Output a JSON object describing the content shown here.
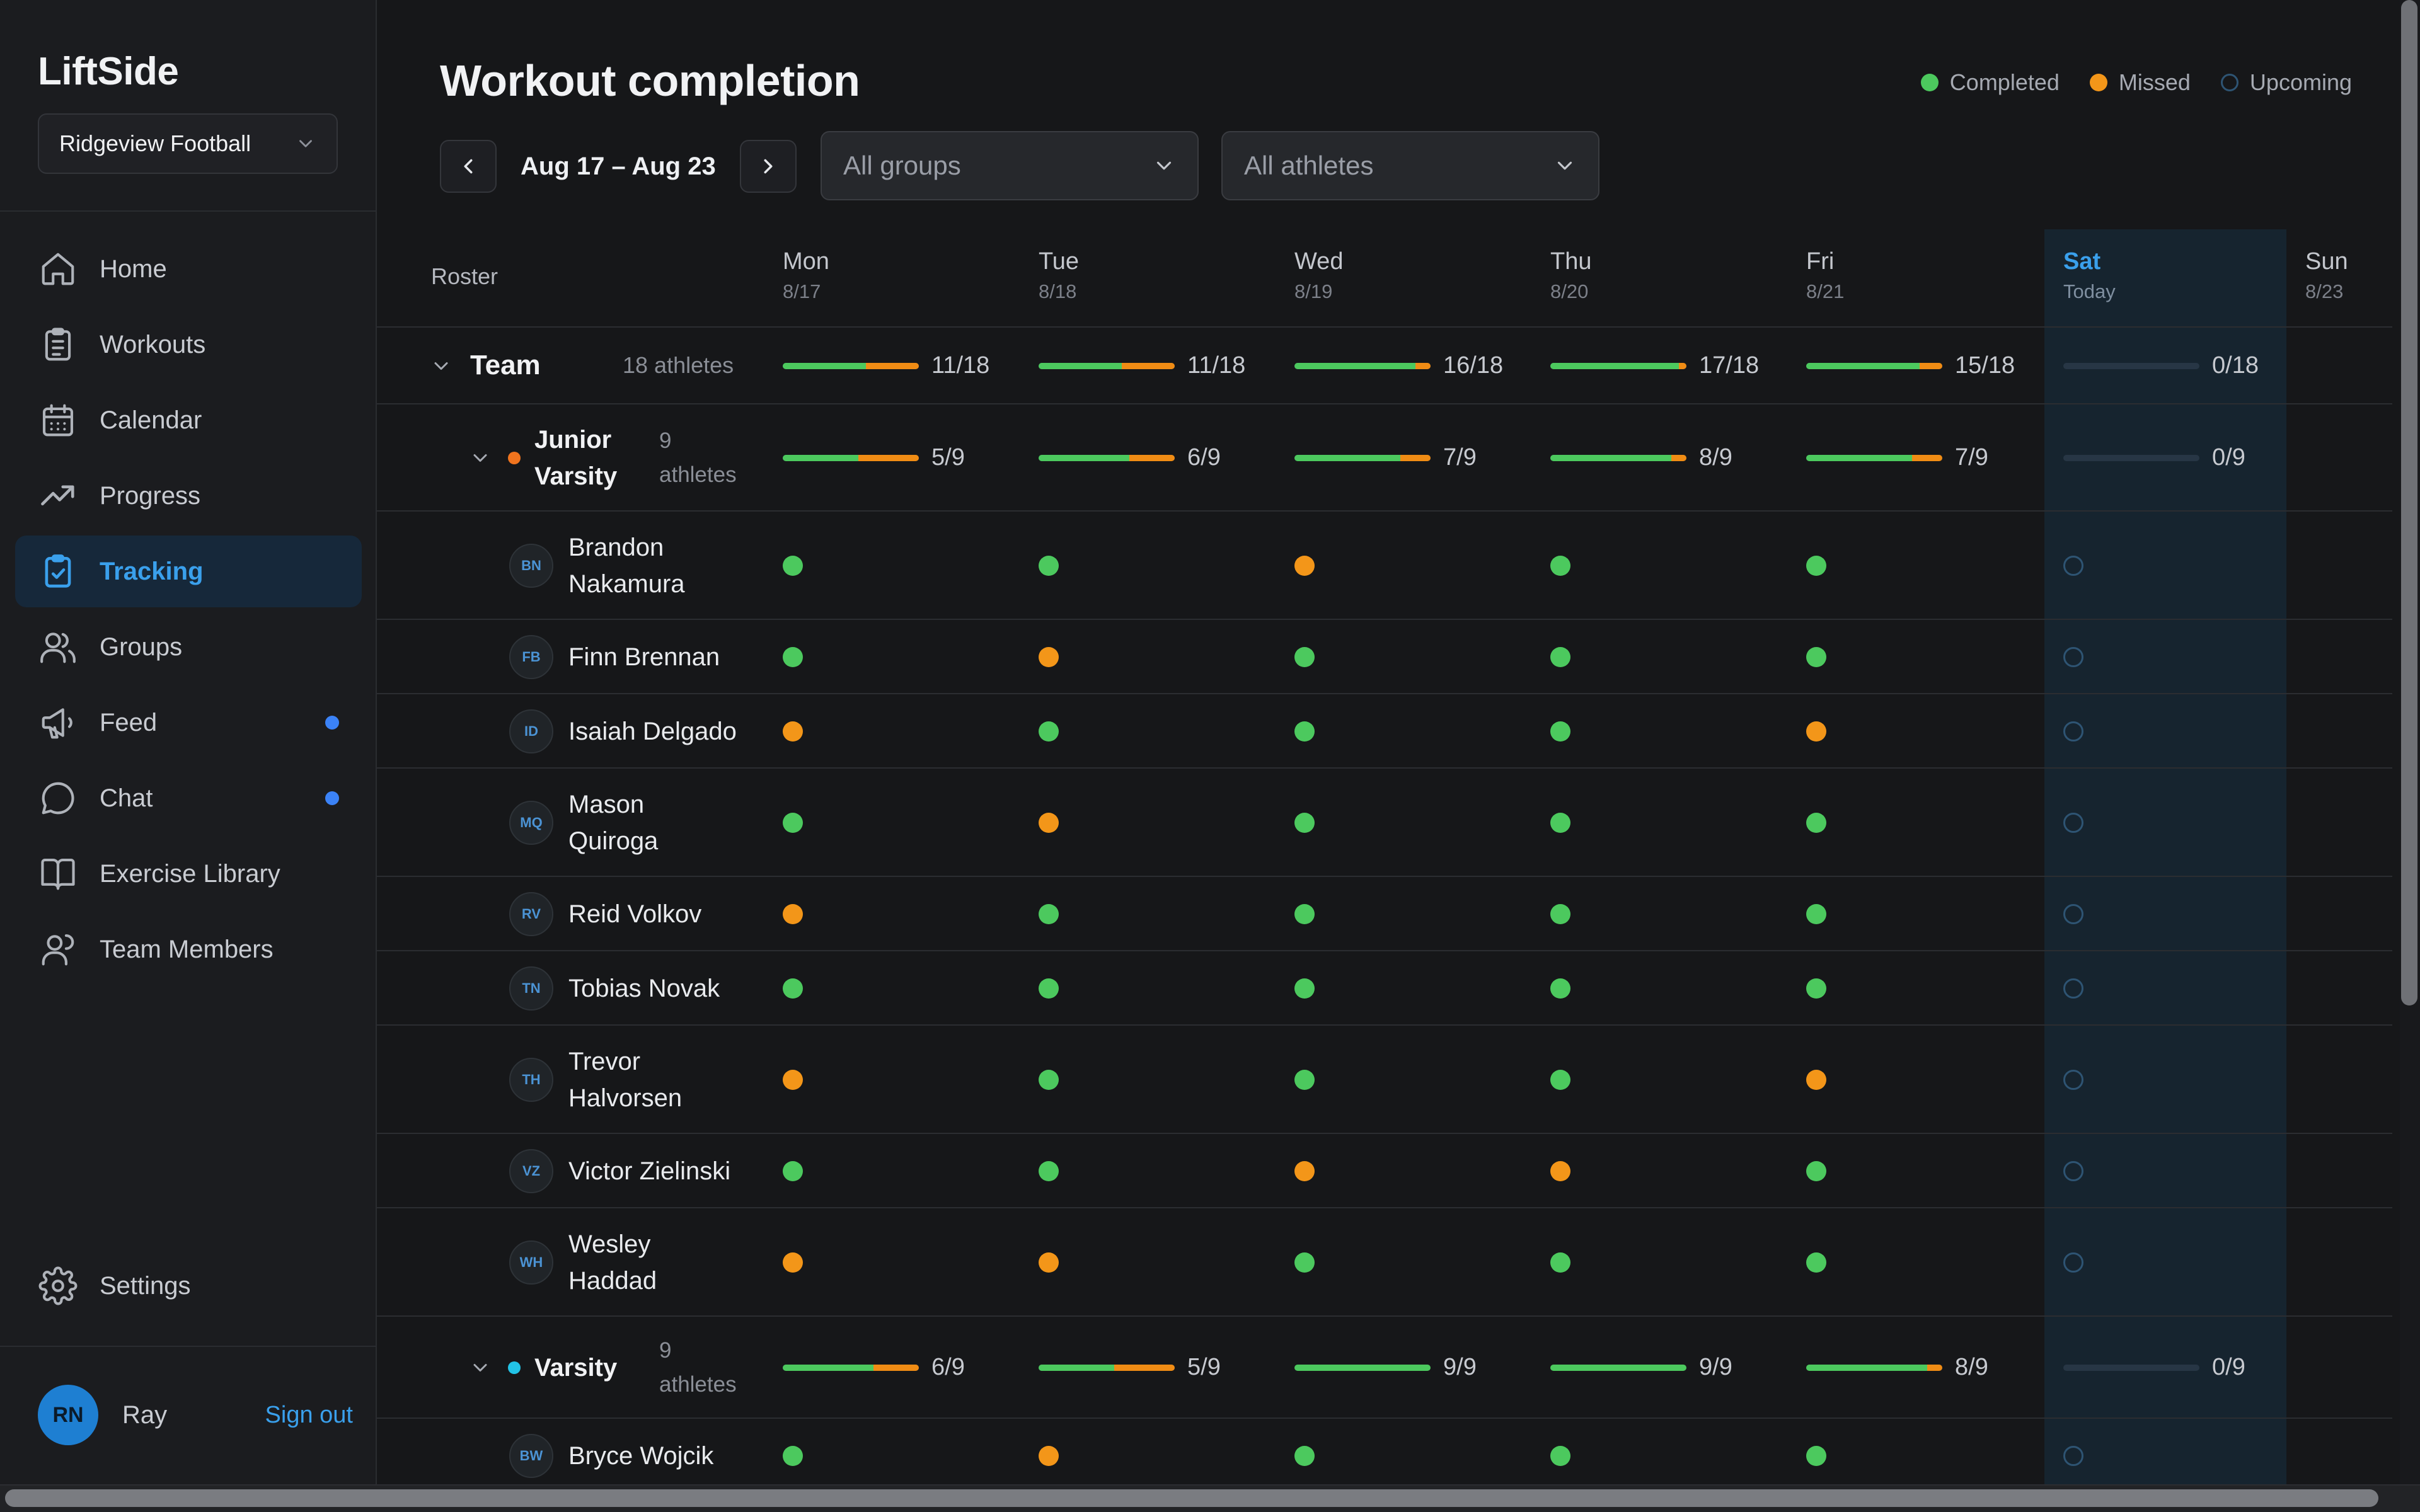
{
  "app": {
    "name": "LiftSide",
    "team_selector": "Ridgeview Football"
  },
  "sidebar": {
    "items": [
      {
        "label": "Home",
        "icon": "home-icon"
      },
      {
        "label": "Workouts",
        "icon": "clipboard-list-icon"
      },
      {
        "label": "Calendar",
        "icon": "calendar-icon"
      },
      {
        "label": "Progress",
        "icon": "trending-up-icon"
      },
      {
        "label": "Tracking",
        "icon": "clipboard-check-icon",
        "active": true
      },
      {
        "label": "Groups",
        "icon": "users-icon"
      },
      {
        "label": "Feed",
        "icon": "megaphone-icon",
        "badge": true
      },
      {
        "label": "Chat",
        "icon": "chat-bubble-icon",
        "badge": true
      },
      {
        "label": "Exercise Library",
        "icon": "book-icon"
      },
      {
        "label": "Team Members",
        "icon": "team-members-icon"
      }
    ],
    "settings_label": "Settings",
    "user": {
      "initials": "RN",
      "name": "Ray",
      "sign_out": "Sign out"
    }
  },
  "page": {
    "title": "Workout completion",
    "legend": [
      {
        "label": "Completed",
        "color": "#4cc95e"
      },
      {
        "label": "Missed",
        "color": "#f39619"
      },
      {
        "label": "Upcoming",
        "color": "#2e5473"
      }
    ],
    "week_range": "Aug 17 – Aug 23",
    "filters": {
      "groups": "All groups",
      "athletes": "All athletes"
    }
  },
  "grid": {
    "roster_label": "Roster",
    "days": [
      {
        "name": "Mon",
        "date": "8/17"
      },
      {
        "name": "Tue",
        "date": "8/18"
      },
      {
        "name": "Wed",
        "date": "8/19"
      },
      {
        "name": "Thu",
        "date": "8/20"
      },
      {
        "name": "Fri",
        "date": "8/21"
      },
      {
        "name": "Sat",
        "date": "Today",
        "today": true
      },
      {
        "name": "Sun",
        "date": "8/23"
      }
    ],
    "team": {
      "name": "Team",
      "count": "18 athletes",
      "stats": [
        {
          "label": "11/18",
          "completed": 11,
          "missed": 7,
          "total": 18
        },
        {
          "label": "11/18",
          "completed": 11,
          "missed": 7,
          "total": 18
        },
        {
          "label": "16/18",
          "completed": 16,
          "missed": 2,
          "total": 18
        },
        {
          "label": "17/18",
          "completed": 17,
          "missed": 1,
          "total": 18
        },
        {
          "label": "15/18",
          "completed": 15,
          "missed": 3,
          "total": 18
        },
        {
          "label": "0/18",
          "completed": 0,
          "missed": 0,
          "total": 18
        }
      ]
    },
    "groups": [
      {
        "name_line1": "Junior",
        "name_line2": "Varsity",
        "count_line1": "9",
        "count_line2": "athletes",
        "dot_color": "#f0741e",
        "stats": [
          {
            "label": "5/9",
            "completed": 5,
            "missed": 4,
            "total": 9
          },
          {
            "label": "6/9",
            "completed": 6,
            "missed": 3,
            "total": 9
          },
          {
            "label": "7/9",
            "completed": 7,
            "missed": 2,
            "total": 9
          },
          {
            "label": "8/9",
            "completed": 8,
            "missed": 1,
            "total": 9
          },
          {
            "label": "7/9",
            "completed": 7,
            "missed": 2,
            "total": 9
          },
          {
            "label": "0/9",
            "completed": 0,
            "missed": 0,
            "total": 9
          }
        ]
      },
      {
        "name_line1": "Varsity",
        "name_line2": "",
        "count_line1": "9",
        "count_line2": "athletes",
        "dot_color": "#22c3e6",
        "stats": [
          {
            "label": "6/9",
            "completed": 6,
            "missed": 3,
            "total": 9
          },
          {
            "label": "5/9",
            "completed": 5,
            "missed": 4,
            "total": 9
          },
          {
            "label": "9/9",
            "completed": 9,
            "missed": 0,
            "total": 9
          },
          {
            "label": "9/9",
            "completed": 9,
            "missed": 0,
            "total": 9
          },
          {
            "label": "8/9",
            "completed": 8,
            "missed": 1,
            "total": 9
          },
          {
            "label": "0/9",
            "completed": 0,
            "missed": 0,
            "total": 9
          }
        ]
      }
    ],
    "athletes": [
      {
        "initials": "BN",
        "line1": "Brandon",
        "line2": "Nakamura",
        "status": [
          "completed",
          "completed",
          "missed",
          "completed",
          "completed",
          "upcoming"
        ]
      },
      {
        "initials": "FB",
        "line1": "Finn Brennan",
        "line2": "",
        "status": [
          "completed",
          "missed",
          "completed",
          "completed",
          "completed",
          "upcoming"
        ]
      },
      {
        "initials": "ID",
        "line1": "Isaiah Delgado",
        "line2": "",
        "status": [
          "missed",
          "completed",
          "completed",
          "completed",
          "missed",
          "upcoming"
        ]
      },
      {
        "initials": "MQ",
        "line1": "Mason",
        "line2": "Quiroga",
        "status": [
          "completed",
          "missed",
          "completed",
          "completed",
          "completed",
          "upcoming"
        ]
      },
      {
        "initials": "RV",
        "line1": "Reid Volkov",
        "line2": "",
        "status": [
          "missed",
          "completed",
          "completed",
          "completed",
          "completed",
          "upcoming"
        ]
      },
      {
        "initials": "TN",
        "line1": "Tobias Novak",
        "line2": "",
        "status": [
          "completed",
          "completed",
          "completed",
          "completed",
          "completed",
          "upcoming"
        ]
      },
      {
        "initials": "TH",
        "line1": "Trevor",
        "line2": "Halvorsen",
        "status": [
          "missed",
          "completed",
          "completed",
          "completed",
          "missed",
          "upcoming"
        ]
      },
      {
        "initials": "VZ",
        "line1": "Victor Zielinski",
        "line2": "",
        "status": [
          "completed",
          "completed",
          "missed",
          "missed",
          "completed",
          "upcoming"
        ]
      },
      {
        "initials": "WH",
        "line1": "Wesley",
        "line2": "Haddad",
        "status": [
          "missed",
          "missed",
          "completed",
          "completed",
          "completed",
          "upcoming"
        ]
      },
      {
        "initials": "BW",
        "line1": "Bryce Wojcik",
        "line2": "",
        "status": [
          "completed",
          "missed",
          "completed",
          "completed",
          "completed",
          "upcoming"
        ]
      }
    ]
  }
}
